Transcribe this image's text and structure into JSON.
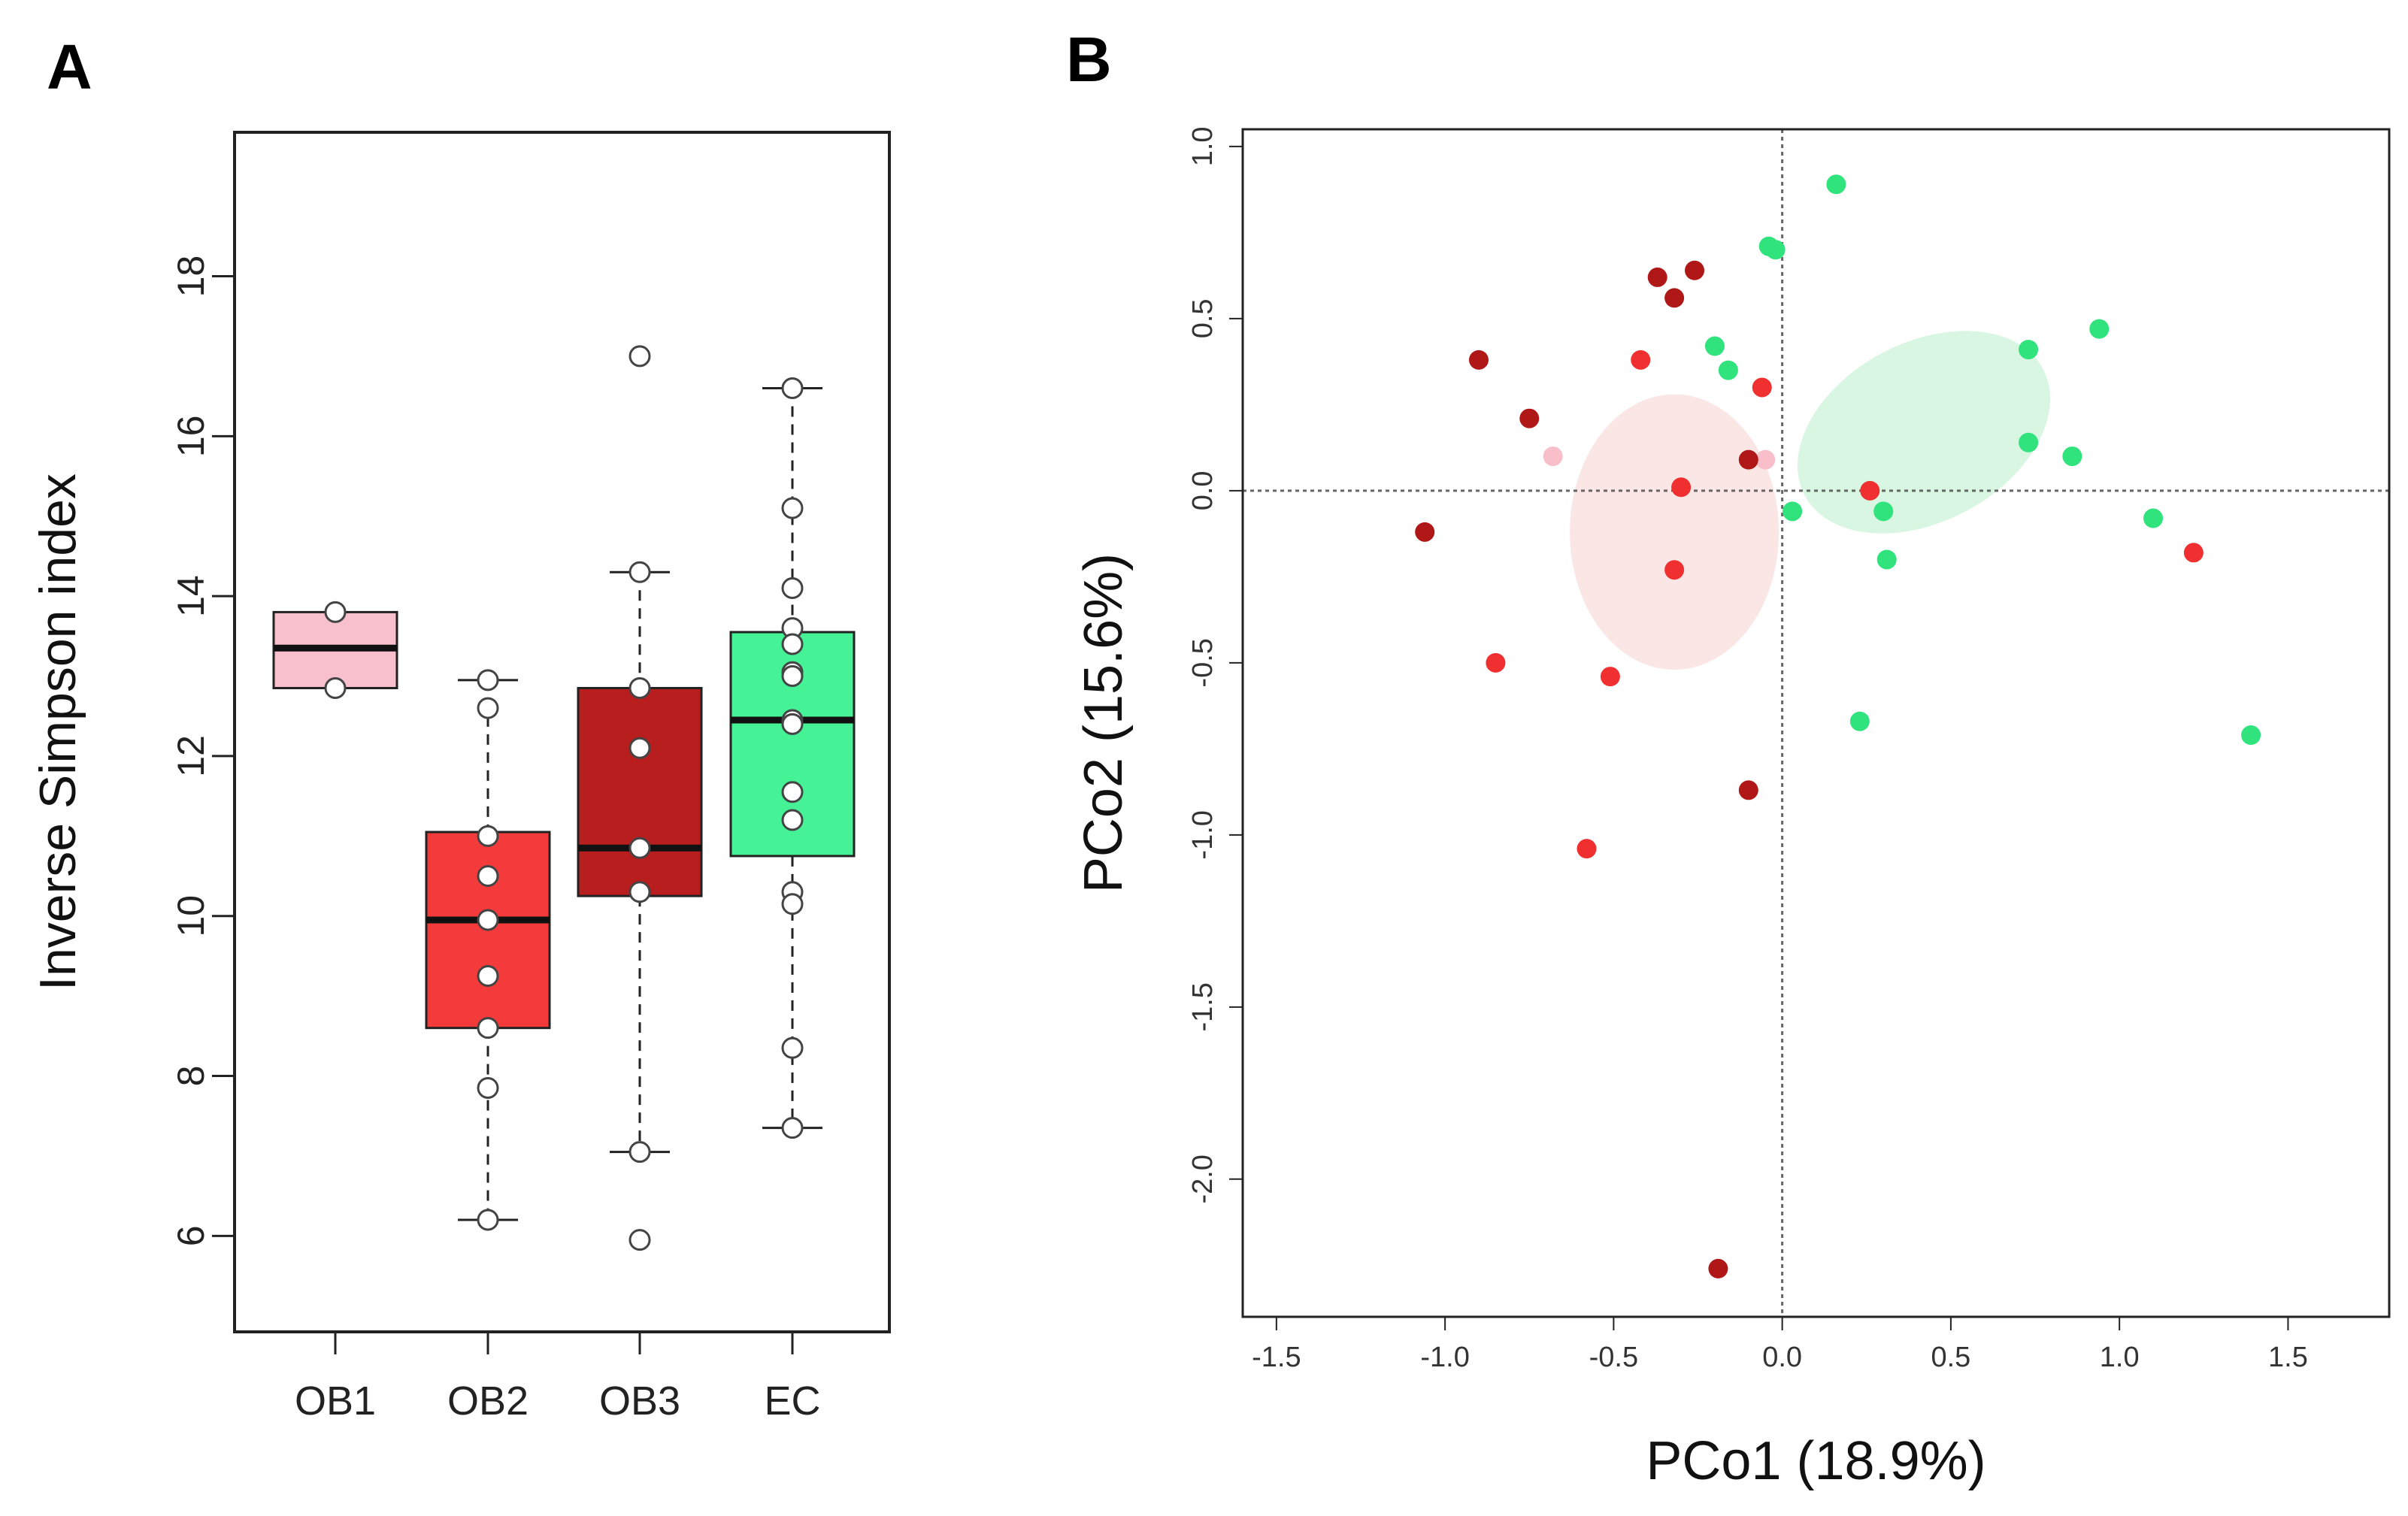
{
  "chart_data": [
    {
      "panel_label": "A",
      "type": "box",
      "ylabel": "Inverse Simpson index",
      "ylim": [
        4.8,
        19.8
      ],
      "yticks": [
        6,
        8,
        10,
        12,
        14,
        16,
        18
      ],
      "ytick_labels": [
        "6",
        "8",
        "10",
        "12",
        "14",
        "16",
        "18"
      ],
      "categories": [
        "OB1",
        "OB2",
        "OB3",
        "EC"
      ],
      "colors": [
        "#f8c0cc",
        "#f43a3a",
        "#b81e1e",
        "#46f296"
      ],
      "groups": [
        {
          "name": "OB1",
          "q1": 12.85,
          "median": 13.35,
          "q3": 13.8,
          "whisker_low": null,
          "whisker_high": null,
          "points": [
            13.8,
            12.85
          ],
          "outliers": []
        },
        {
          "name": "OB2",
          "q1": 8.6,
          "median": 9.95,
          "q3": 11.05,
          "whisker_low": 6.2,
          "whisker_high": 12.95,
          "points": [
            12.95,
            12.6,
            11.0,
            10.5,
            9.95,
            9.25,
            8.6,
            7.85,
            6.2
          ],
          "outliers": []
        },
        {
          "name": "OB3",
          "q1": 10.25,
          "median": 10.85,
          "q3": 12.85,
          "whisker_low": 7.05,
          "whisker_high": 14.3,
          "points": [
            14.3,
            12.85,
            12.1,
            10.85,
            10.3,
            7.05
          ],
          "outliers": [
            17.0,
            5.95
          ]
        },
        {
          "name": "EC",
          "q1": 10.75,
          "median": 12.45,
          "q3": 13.55,
          "whisker_low": 7.35,
          "whisker_high": 16.6,
          "points": [
            16.6,
            15.1,
            14.1,
            13.6,
            13.4,
            13.05,
            13.0,
            12.45,
            12.4,
            11.55,
            11.2,
            10.3,
            10.15,
            8.35,
            7.35
          ],
          "outliers": []
        }
      ]
    },
    {
      "panel_label": "B",
      "type": "scatter",
      "xlabel": "PCo1 (18.9%)",
      "ylabel": "PCo2 (15.6%)",
      "xlim": [
        -1.6,
        1.8
      ],
      "ylim": [
        -2.4,
        1.05
      ],
      "xticks": [
        -1.5,
        -1.0,
        -0.5,
        0.0,
        0.5,
        1.0,
        1.5
      ],
      "xtick_labels": [
        "-1.5",
        "-1.0",
        "-0.5",
        "0.0",
        "0.5",
        "1.0",
        "1.5"
      ],
      "yticks": [
        -2.0,
        -1.5,
        -1.0,
        -0.5,
        0.0,
        0.5,
        1.0
      ],
      "ytick_labels": [
        "-2.0",
        "-1.5",
        "-1.0",
        "-0.5",
        "0.0",
        "0.5",
        "1.0"
      ],
      "reference_lines": {
        "x": 0,
        "y": 0
      },
      "ellipses": [
        {
          "group": "OB",
          "color": "#fbe3e3",
          "cx": -0.32,
          "cy": -0.12,
          "rx": 0.31,
          "ry": 0.4,
          "angle": 0
        },
        {
          "group": "EC",
          "color": "#d4f5de",
          "cx": 0.42,
          "cy": 0.17,
          "rx": 0.4,
          "ry": 0.26,
          "angle": -28
        }
      ],
      "series": [
        {
          "name": "OB1",
          "color": "#f8bfca",
          "points": [
            [
              -0.68,
              0.1
            ],
            [
              -0.05,
              0.09
            ]
          ]
        },
        {
          "name": "OB2",
          "color": "#f03030",
          "points": [
            [
              -0.42,
              0.38
            ],
            [
              -0.06,
              0.3
            ],
            [
              -0.3,
              0.01
            ],
            [
              -0.32,
              -0.23
            ],
            [
              -0.85,
              -0.5
            ],
            [
              -0.51,
              -0.54
            ],
            [
              -0.58,
              -1.04
            ],
            [
              0.26,
              0.0
            ],
            [
              1.22,
              -0.18
            ]
          ]
        },
        {
          "name": "OB3",
          "color": "#b01818",
          "points": [
            [
              -0.9,
              0.38
            ],
            [
              -0.75,
              0.21
            ],
            [
              -1.06,
              -0.12
            ],
            [
              -0.37,
              0.62
            ],
            [
              -0.32,
              0.56
            ],
            [
              -0.26,
              0.64
            ],
            [
              -0.1,
              0.09
            ],
            [
              -0.1,
              -0.87
            ],
            [
              -0.19,
              -2.26
            ]
          ]
        },
        {
          "name": "EC",
          "color": "#30e37d",
          "points": [
            [
              0.16,
              0.89
            ],
            [
              -0.04,
              0.71
            ],
            [
              -0.02,
              0.7
            ],
            [
              -0.2,
              0.42
            ],
            [
              -0.16,
              0.35
            ],
            [
              0.03,
              -0.06
            ],
            [
              0.3,
              -0.06
            ],
            [
              0.31,
              -0.2
            ],
            [
              0.23,
              -0.67
            ],
            [
              0.73,
              0.41
            ],
            [
              0.73,
              0.14
            ],
            [
              0.86,
              0.1
            ],
            [
              0.94,
              0.47
            ],
            [
              1.1,
              -0.08
            ],
            [
              1.39,
              -0.71
            ]
          ]
        }
      ]
    }
  ]
}
